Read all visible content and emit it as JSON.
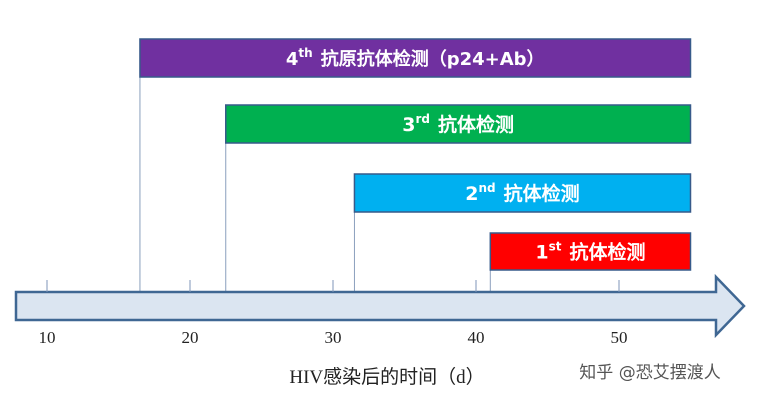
{
  "diagram": {
    "axis_title": "HIV感染后的时间（d）",
    "axis_ticks": [
      10,
      20,
      30,
      40,
      50
    ],
    "windows": [
      {
        "main": "4",
        "sup": "th",
        "label": "抗原抗体检测（p24+Ab）",
        "start_day": 16.5,
        "end_day": 55,
        "color": "#7030a0"
      },
      {
        "main": "3",
        "sup": "rd",
        "label": "抗体检测",
        "start_day": 22.5,
        "end_day": 55,
        "color": "#00b050"
      },
      {
        "main": "2",
        "sup": "nd",
        "label": "抗体检测",
        "start_day": 31.5,
        "end_day": 55,
        "color": "#00b0f0"
      },
      {
        "main": "1",
        "sup": "st",
        "label": "抗体检测",
        "start_day": 41,
        "end_day": 55,
        "color": "#ff0000"
      }
    ],
    "arrow_color": "#dbe5f1",
    "arrow_border": "#3f6793"
  },
  "watermark": "知乎 @恐艾摆渡人"
}
